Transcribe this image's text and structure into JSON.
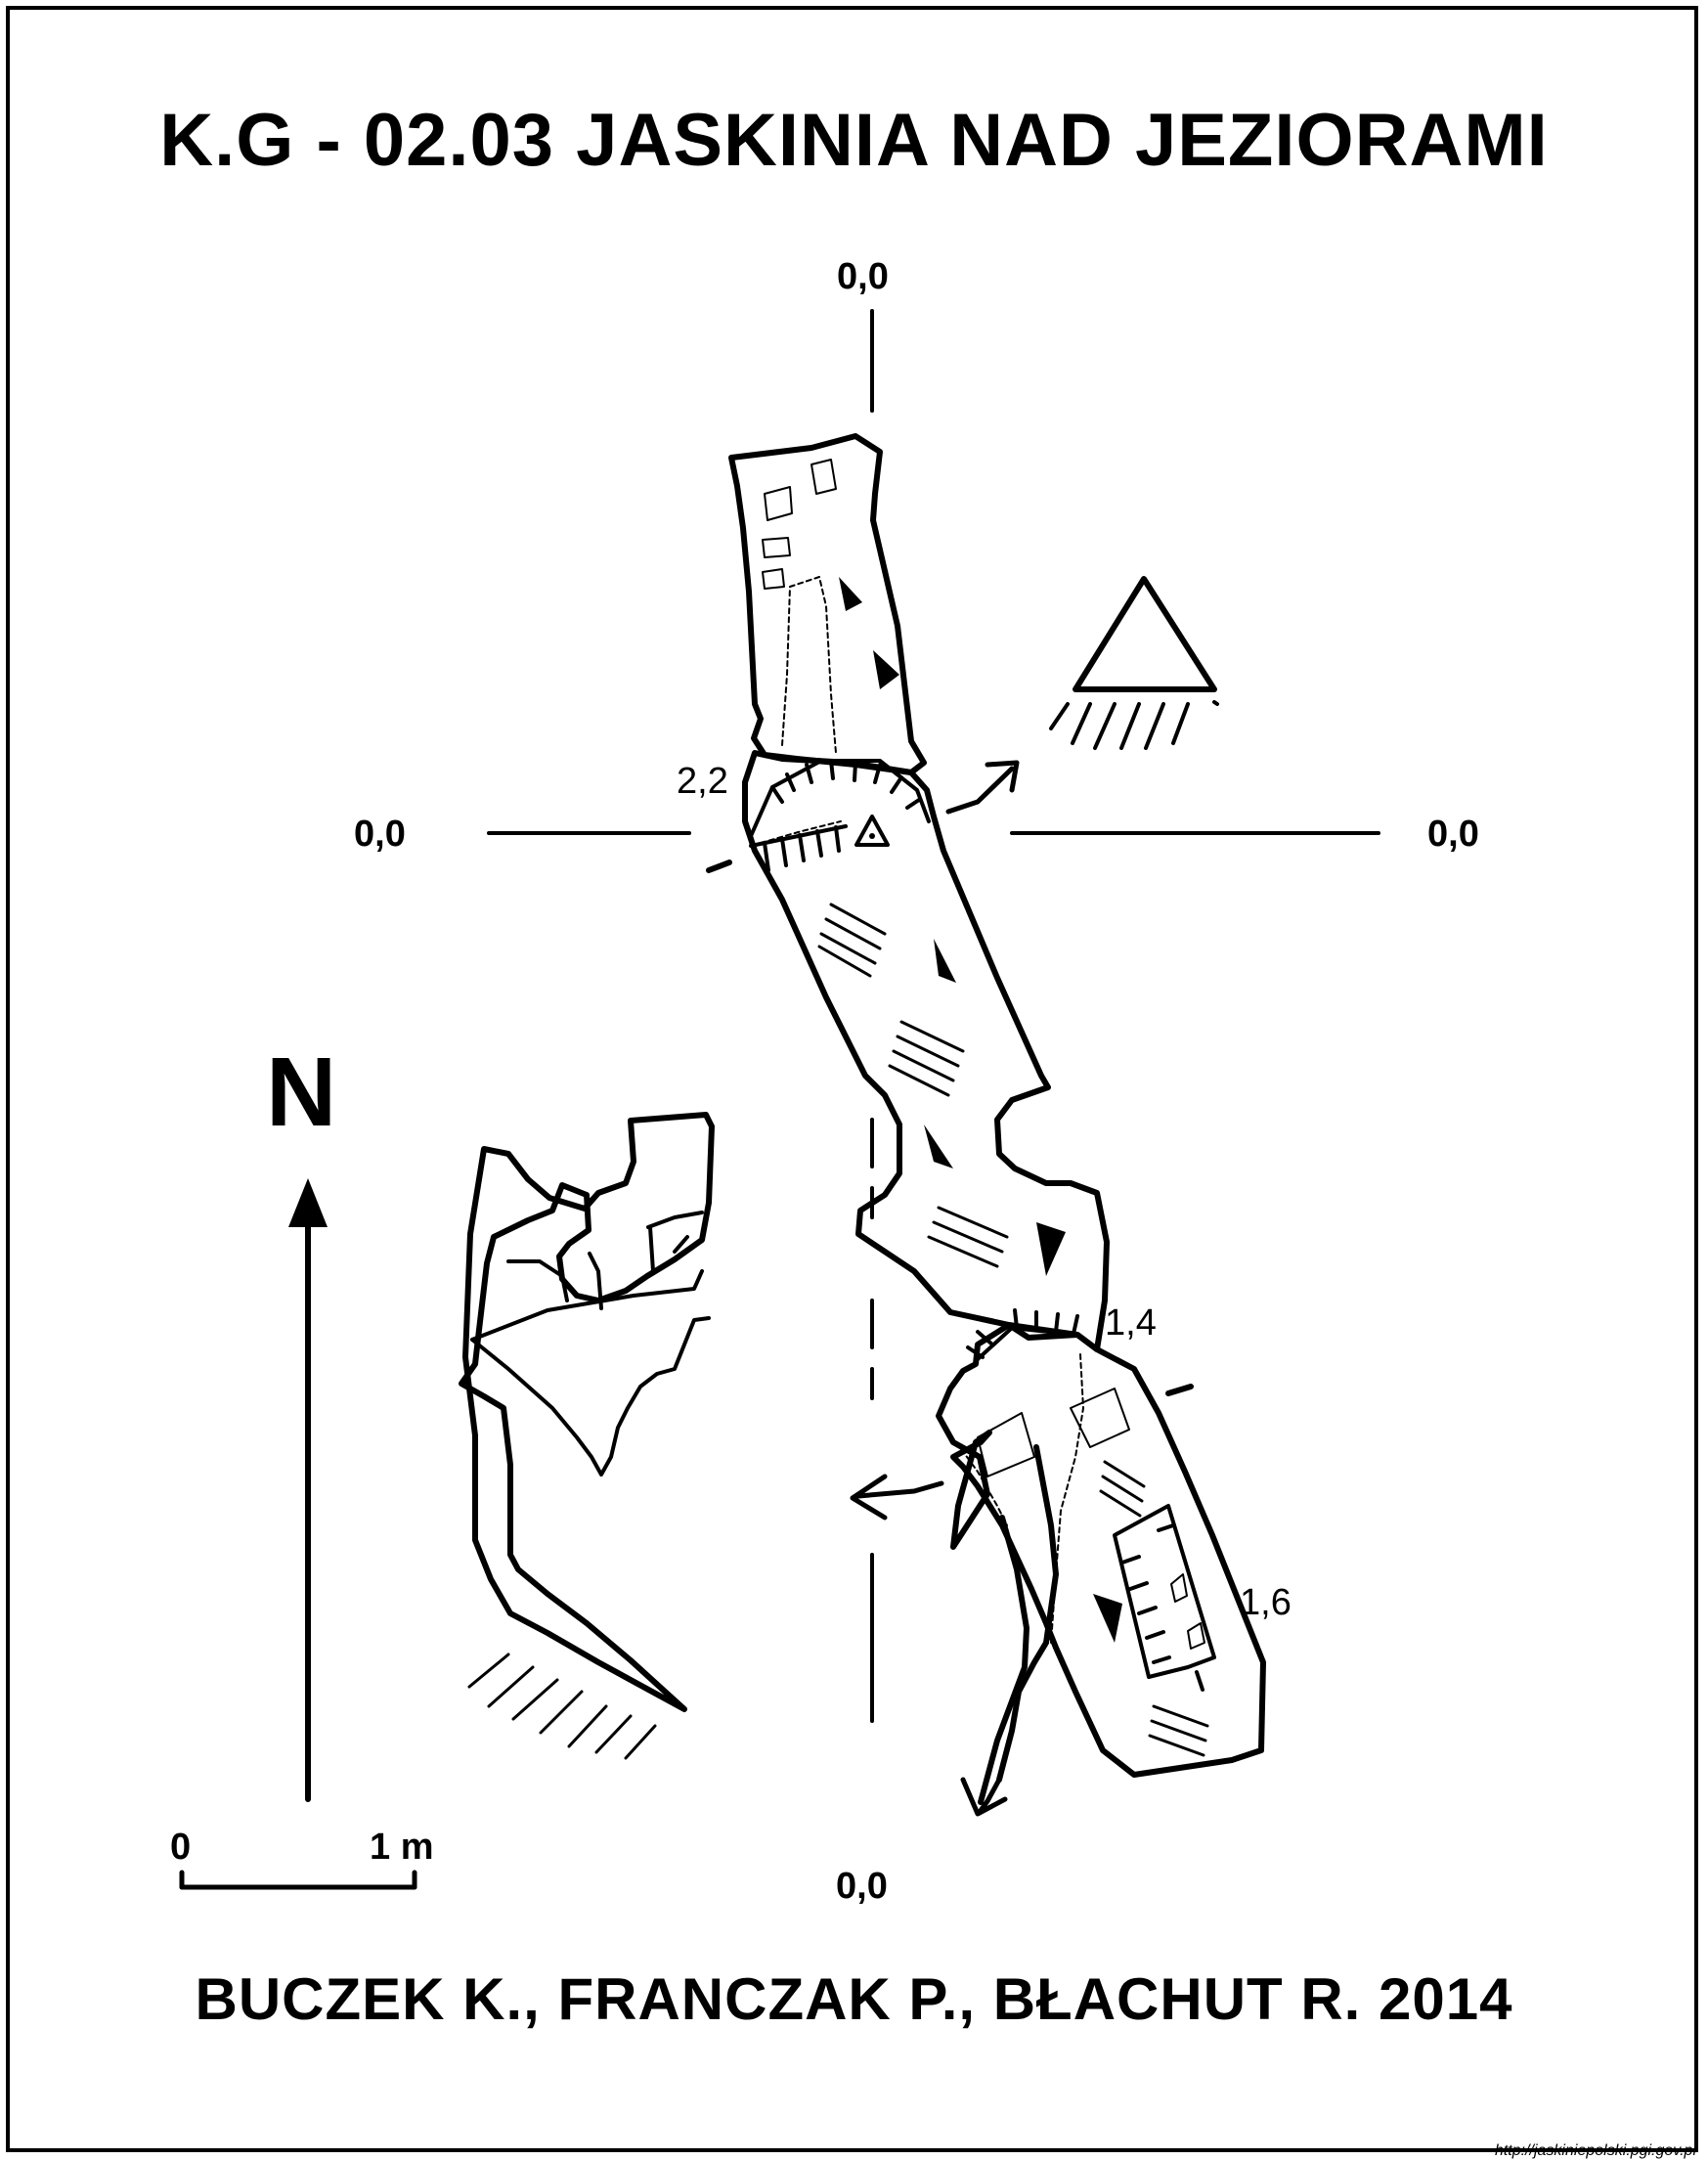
{
  "title": "K.G - 02.03  JASKINIA NAD JEZIORAMI",
  "authors": "BUCZEK K., FRANCZAK P., BŁACHUT R. 2014",
  "north_label": "N",
  "scale_bar": {
    "start_label": "0",
    "end_label": "1 m"
  },
  "section_labels": {
    "top": "0,0",
    "left": "0,0",
    "right": "0,0",
    "bottom": "0,0"
  },
  "height_labels": [
    "2,2",
    "1,4",
    "1,6"
  ],
  "source_url": "http://jaskiniepolski.pgi.gov.pl",
  "colors": {
    "ink": "#000000",
    "paper": "#ffffff"
  },
  "icons": [
    "entrance-triangle-icon",
    "north-arrow-icon",
    "flow-arrow-icon"
  ]
}
